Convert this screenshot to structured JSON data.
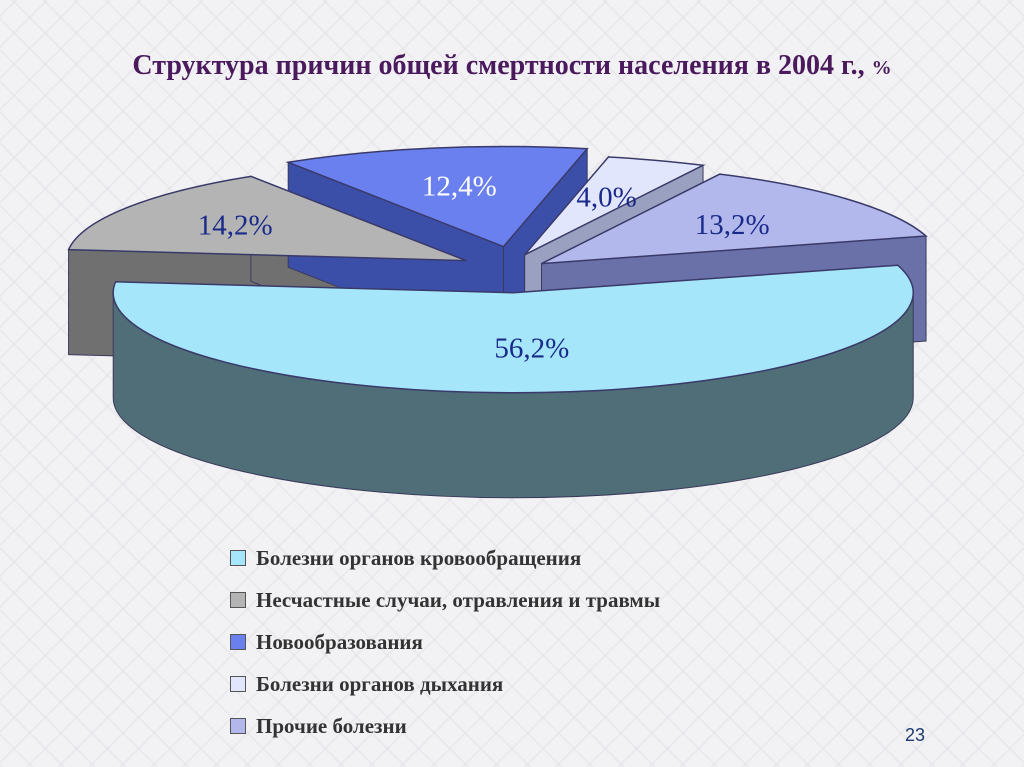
{
  "slide": {
    "title": "Структура причин общей смертности населения в 2004 г.,",
    "title_unit": "%",
    "page_number": "23"
  },
  "chart_data": {
    "type": "pie",
    "title": "Структура причин общей смертности населения в 2004 г., %",
    "categories": [
      "Болезни органов кровообращения",
      "Несчастные случаи, отравления и травмы",
      "Новообразования",
      "Болезни органов дыхания",
      "Прочие болезни"
    ],
    "values": [
      56.2,
      14.2,
      12.4,
      4.0,
      13.2
    ],
    "labels": [
      "56,2%",
      "14,2%",
      "12,4%",
      "4,0%",
      "13,2%"
    ],
    "colors": [
      "#a6e6fa",
      "#b4b4b4",
      "#6a80ee",
      "#e2e6fc",
      "#b2b8ec"
    ],
    "side_colors": [
      "#4f6e78",
      "#707070",
      "#3c4fa8",
      "#9aa0c0",
      "#6a70a8"
    ],
    "label_colors": [
      "#1a2a8a",
      "#1a2a8a",
      "#ffffff",
      "#1a2a8a",
      "#1a2a8a"
    ],
    "legend_position": "bottom"
  }
}
